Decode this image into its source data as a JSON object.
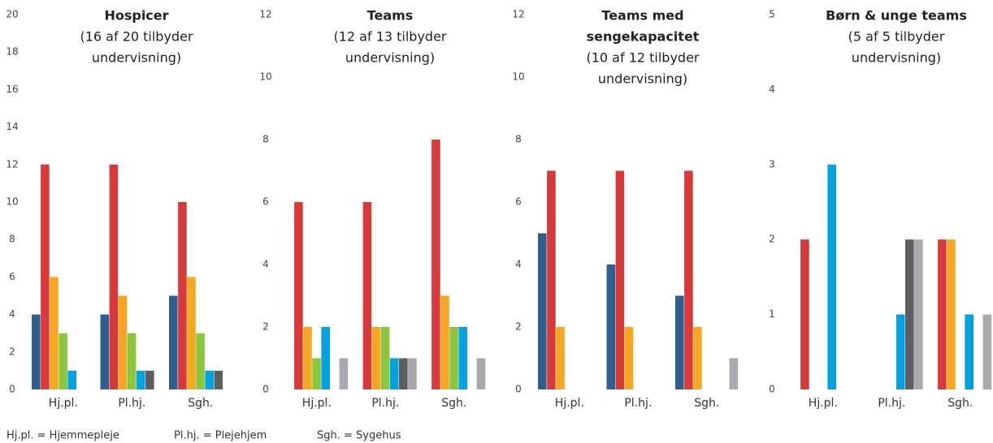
{
  "chart_data": [
    {
      "type": "bar",
      "title": [
        "Hospicer"
      ],
      "subtitle": [
        "(16 af 20 tilbyder",
        "undervisning)"
      ],
      "categories": [
        "Hj.pl.",
        "Pl.hj.",
        "Sgh."
      ],
      "series": [
        {
          "color": "#2e5f8e",
          "values": [
            4,
            4,
            5
          ]
        },
        {
          "color": "#d63a3a",
          "values": [
            12,
            12,
            10
          ]
        },
        {
          "color": "#f5a623",
          "values": [
            6,
            5,
            6
          ]
        },
        {
          "color": "#8cc63f",
          "values": [
            3,
            3,
            3
          ]
        },
        {
          "color": "#00a3e0",
          "values": [
            1,
            1,
            1
          ]
        },
        {
          "color": "#5e5e5e",
          "values": [
            0,
            1,
            1
          ]
        },
        {
          "color": "#a7a9ac",
          "values": [
            0,
            0,
            0
          ]
        }
      ],
      "ylim": [
        0,
        20
      ],
      "yticks": [
        0,
        2,
        4,
        6,
        8,
        10,
        12,
        14,
        16,
        18,
        20
      ]
    },
    {
      "type": "bar",
      "title": [
        "Teams"
      ],
      "subtitle": [
        "(12 af 13 tilbyder",
        "undervisning)"
      ],
      "categories": [
        "Hj.pl.",
        "Pl.hj.",
        "Sgh."
      ],
      "series": [
        {
          "color": "#2e5f8e",
          "values": [
            0,
            0,
            0
          ]
        },
        {
          "color": "#d63a3a",
          "values": [
            6,
            6,
            8
          ]
        },
        {
          "color": "#f5a623",
          "values": [
            2,
            2,
            3
          ]
        },
        {
          "color": "#8cc63f",
          "values": [
            1,
            2,
            2
          ]
        },
        {
          "color": "#00a3e0",
          "values": [
            2,
            1,
            2
          ]
        },
        {
          "color": "#5e5e5e",
          "values": [
            0,
            1,
            0
          ]
        },
        {
          "color": "#a7a9ac",
          "values": [
            1,
            1,
            1
          ]
        }
      ],
      "ylim": [
        0,
        12
      ],
      "yticks": [
        0,
        2,
        4,
        6,
        8,
        10,
        12
      ]
    },
    {
      "type": "bar",
      "title": [
        "Teams med",
        "sengekapacitet"
      ],
      "subtitle": [
        "(10 af 12 tilbyder",
        "undervisning)"
      ],
      "categories": [
        "Hj.pl.",
        "Pl.hj.",
        "Sgh."
      ],
      "series": [
        {
          "color": "#2e5f8e",
          "values": [
            5,
            4,
            3
          ]
        },
        {
          "color": "#d63a3a",
          "values": [
            7,
            7,
            7
          ]
        },
        {
          "color": "#f5a623",
          "values": [
            2,
            2,
            2
          ]
        },
        {
          "color": "#8cc63f",
          "values": [
            0,
            0,
            0
          ]
        },
        {
          "color": "#00a3e0",
          "values": [
            0,
            0,
            0
          ]
        },
        {
          "color": "#5e5e5e",
          "values": [
            0,
            0,
            0
          ]
        },
        {
          "color": "#a7a9ac",
          "values": [
            0,
            0,
            1
          ]
        }
      ],
      "ylim": [
        0,
        12
      ],
      "yticks": [
        0,
        2,
        4,
        6,
        8,
        10,
        12
      ]
    },
    {
      "type": "bar",
      "title": [
        "Børn & unge teams"
      ],
      "subtitle": [
        "(5 af 5 tilbyder",
        "undervisning)"
      ],
      "categories": [
        "Hj.pl.",
        "Pl.hj.",
        "Sgh."
      ],
      "series": [
        {
          "color": "#2e5f8e",
          "values": [
            0,
            0,
            0
          ]
        },
        {
          "color": "#d63a3a",
          "values": [
            2,
            0,
            2
          ]
        },
        {
          "color": "#f5a623",
          "values": [
            0,
            0,
            2
          ]
        },
        {
          "color": "#8cc63f",
          "values": [
            0,
            0,
            0
          ]
        },
        {
          "color": "#00a3e0",
          "values": [
            3,
            1,
            1
          ]
        },
        {
          "color": "#5e5e5e",
          "values": [
            0,
            2,
            0
          ]
        },
        {
          "color": "#a7a9ac",
          "values": [
            0,
            2,
            1
          ]
        }
      ],
      "ylim": [
        0,
        5
      ],
      "yticks": [
        0,
        1,
        2,
        3,
        4,
        5
      ]
    }
  ],
  "notes": [
    "Hj.pl. = Hjemmepleje",
    "Pl.hj. = Plejehjem",
    "Sgh. = Sygehus"
  ]
}
